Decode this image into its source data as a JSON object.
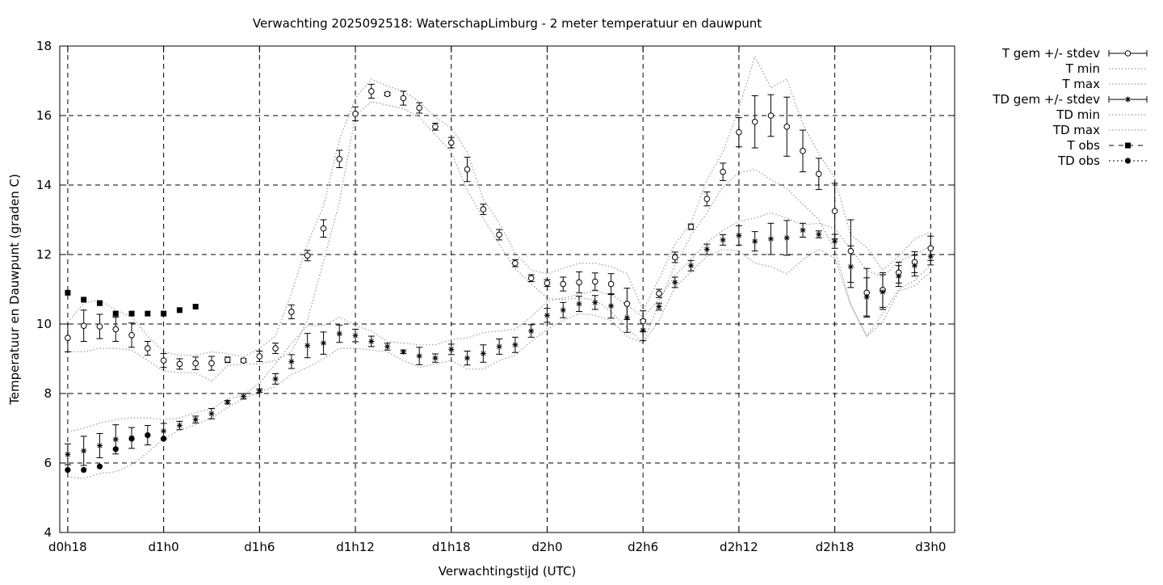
{
  "chart_data": {
    "type": "scatter",
    "title": "Verwachting 2025092518: WaterschapLimburg - 2 meter temperatuur en dauwpunt",
    "xlabel": "Verwachtingstijd (UTC)",
    "ylabel": "Temperatuur en Dauwpunt (graden C)",
    "x_unit": "hours after d0h0",
    "xlim": [
      17.5,
      73.5
    ],
    "ylim": [
      4,
      18
    ],
    "grid": true,
    "legend_position": "outside-right",
    "x_ticks": [
      {
        "x": 18,
        "label": "d0h18"
      },
      {
        "x": 24,
        "label": "d1h0"
      },
      {
        "x": 30,
        "label": "d1h6"
      },
      {
        "x": 36,
        "label": "d1h12"
      },
      {
        "x": 42,
        "label": "d1h18"
      },
      {
        "x": 48,
        "label": "d2h0"
      },
      {
        "x": 54,
        "label": "d2h6"
      },
      {
        "x": 60,
        "label": "d2h12"
      },
      {
        "x": 66,
        "label": "d2h18"
      },
      {
        "x": 72,
        "label": "d3h0"
      }
    ],
    "y_ticks": [
      4,
      6,
      8,
      10,
      12,
      14,
      16,
      18
    ],
    "x": [
      18,
      19,
      20,
      21,
      22,
      23,
      24,
      25,
      26,
      27,
      28,
      29,
      30,
      31,
      32,
      33,
      34,
      35,
      36,
      37,
      38,
      39,
      40,
      41,
      42,
      43,
      44,
      45,
      46,
      47,
      48,
      49,
      50,
      51,
      52,
      53,
      54,
      55,
      56,
      57,
      58,
      59,
      60,
      61,
      62,
      63,
      64,
      65,
      66,
      67,
      68,
      69,
      70,
      71,
      72
    ],
    "series": [
      {
        "name": "T gem +/- stdev",
        "marker": "circle",
        "values": [
          9.6,
          9.95,
          9.93,
          9.85,
          9.68,
          9.3,
          8.95,
          8.85,
          8.87,
          8.87,
          8.97,
          8.95,
          9.07,
          9.3,
          10.35,
          11.97,
          12.75,
          14.75,
          16.05,
          16.7,
          16.62,
          16.5,
          16.22,
          15.68,
          15.22,
          14.45,
          13.3,
          12.57,
          11.75,
          11.32,
          11.18,
          11.15,
          11.2,
          11.22,
          11.15,
          10.58,
          10.08,
          10.88,
          11.92,
          12.8,
          13.6,
          14.38,
          15.52,
          15.82,
          16.0,
          15.68,
          14.98,
          14.32,
          13.25,
          12.1,
          10.9,
          10.98,
          11.48,
          11.78,
          12.18
        ],
        "stdev": [
          0.4,
          0.45,
          0.35,
          0.35,
          0.35,
          0.2,
          0.2,
          0.15,
          0.18,
          0.2,
          0.08,
          0.05,
          0.15,
          0.15,
          0.2,
          0.15,
          0.25,
          0.25,
          0.2,
          0.2,
          0.05,
          0.2,
          0.15,
          0.1,
          0.15,
          0.35,
          0.15,
          0.15,
          0.1,
          0.1,
          0.1,
          0.2,
          0.3,
          0.25,
          0.3,
          0.45,
          0.3,
          0.12,
          0.15,
          0.08,
          0.2,
          0.25,
          0.42,
          0.75,
          0.6,
          0.85,
          0.6,
          0.45,
          0.8,
          0.9,
          0.7,
          0.5,
          0.3,
          0.3,
          0.35
        ]
      },
      {
        "name": "T min",
        "style": "dotted",
        "values": [
          9.2,
          9.2,
          9.3,
          9.3,
          9.25,
          8.95,
          8.65,
          8.6,
          8.6,
          8.35,
          8.8,
          8.85,
          8.85,
          8.95,
          9.2,
          10.1,
          11.8,
          13.5,
          16.0,
          16.4,
          16.3,
          16.2,
          15.95,
          15.45,
          14.95,
          13.85,
          13.05,
          12.3,
          11.6,
          11.15,
          10.75,
          10.7,
          10.75,
          10.7,
          10.35,
          9.9,
          9.45,
          10.6,
          11.7,
          12.55,
          13.2,
          13.95,
          14.35,
          14.45,
          14.15,
          13.9,
          13.45,
          13.0,
          12.15,
          10.55,
          9.65,
          10.3,
          11.0,
          11.25,
          11.7
        ]
      },
      {
        "name": "T max",
        "style": "dotted",
        "values": [
          10.05,
          10.6,
          10.7,
          10.4,
          10.2,
          9.65,
          9.2,
          9.1,
          9.1,
          9.2,
          9.15,
          9.05,
          9.3,
          9.65,
          10.9,
          12.3,
          13.4,
          15.3,
          16.5,
          17.05,
          16.85,
          16.7,
          16.4,
          15.95,
          15.65,
          14.95,
          13.6,
          12.9,
          12.05,
          11.55,
          11.45,
          11.6,
          11.75,
          11.75,
          11.65,
          11.45,
          10.4,
          11.3,
          12.3,
          12.9,
          14.15,
          14.95,
          16.2,
          17.7,
          16.8,
          17.05,
          15.75,
          14.9,
          14.2,
          12.55,
          12.2,
          11.55,
          11.95,
          12.45,
          12.65
        ]
      },
      {
        "name": "TD gem +/- stdev",
        "marker": "star",
        "values": [
          6.25,
          6.35,
          6.5,
          6.68,
          6.72,
          6.8,
          6.92,
          7.08,
          7.25,
          7.42,
          7.75,
          7.92,
          8.08,
          8.42,
          8.92,
          9.38,
          9.45,
          9.72,
          9.67,
          9.5,
          9.35,
          9.2,
          9.08,
          9.02,
          9.27,
          9.02,
          9.15,
          9.35,
          9.4,
          9.8,
          10.25,
          10.4,
          10.58,
          10.62,
          10.52,
          10.18,
          9.82,
          10.5,
          11.2,
          11.68,
          12.15,
          12.42,
          12.55,
          12.38,
          12.45,
          12.48,
          12.7,
          12.58,
          12.38,
          11.65,
          10.78,
          10.92,
          11.38,
          11.68,
          11.95
        ]
      },
      {
        "name": "TD min",
        "style": "dotted",
        "values": [
          5.6,
          5.55,
          5.7,
          5.75,
          5.95,
          6.3,
          6.7,
          6.95,
          7.1,
          7.3,
          7.6,
          7.85,
          8.05,
          8.2,
          8.55,
          8.75,
          9.0,
          9.3,
          9.3,
          9.25,
          9.2,
          8.95,
          8.75,
          8.85,
          8.95,
          8.7,
          8.7,
          8.95,
          9.1,
          9.5,
          9.85,
          10.1,
          10.3,
          10.25,
          10.1,
          9.65,
          9.45,
          10.1,
          11.05,
          11.5,
          11.95,
          12.15,
          12.1,
          11.75,
          11.65,
          11.45,
          11.85,
          12.15,
          11.9,
          10.55,
          9.65,
          10.05,
          10.95,
          11.1,
          11.5
        ]
      },
      {
        "name": "TD max",
        "style": "dotted",
        "values": [
          6.9,
          7.0,
          7.15,
          7.25,
          7.3,
          7.3,
          7.25,
          7.3,
          7.45,
          7.55,
          7.85,
          7.95,
          8.3,
          8.85,
          9.45,
          9.95,
          9.95,
          10.2,
          9.95,
          9.8,
          9.5,
          9.45,
          9.4,
          9.4,
          9.55,
          9.6,
          9.75,
          9.8,
          9.85,
          10.2,
          10.65,
          10.75,
          10.85,
          10.95,
          10.85,
          10.55,
          10.2,
          10.7,
          11.4,
          11.85,
          12.35,
          12.7,
          12.95,
          13.05,
          13.2,
          13.05,
          12.85,
          12.9,
          12.75,
          12.15,
          11.55,
          11.35,
          11.8,
          12.0,
          12.25
        ]
      },
      {
        "name": "T obs",
        "marker": "square",
        "x": [
          18,
          19,
          20,
          21,
          22,
          23,
          24,
          25,
          26
        ],
        "values": [
          10.9,
          10.7,
          10.6,
          10.3,
          10.3,
          10.3,
          10.3,
          10.4,
          10.5
        ]
      },
      {
        "name": "TD obs",
        "marker": "dot",
        "x": [
          18,
          19,
          20,
          21,
          22,
          23,
          24
        ],
        "values": [
          5.8,
          5.8,
          5.9,
          6.4,
          6.7,
          6.8,
          6.7
        ]
      }
    ],
    "td_stdev": [
      0.3,
      0.42,
      0.35,
      0.42,
      0.3,
      0.28,
      0.22,
      0.12,
      0.1,
      0.15,
      0.05,
      0.08,
      0.05,
      0.15,
      0.2,
      0.35,
      0.32,
      0.25,
      0.18,
      0.15,
      0.1,
      0.05,
      0.25,
      0.12,
      0.15,
      0.2,
      0.25,
      0.22,
      0.22,
      0.18,
      0.2,
      0.22,
      0.22,
      0.2,
      0.35,
      0.42,
      0.3,
      0.1,
      0.15,
      0.15,
      0.15,
      0.15,
      0.28,
      0.28,
      0.45,
      0.5,
      0.2,
      0.1,
      0.2,
      0.6,
      0.55,
      0.5,
      0.3,
      0.3,
      0.25
    ]
  }
}
